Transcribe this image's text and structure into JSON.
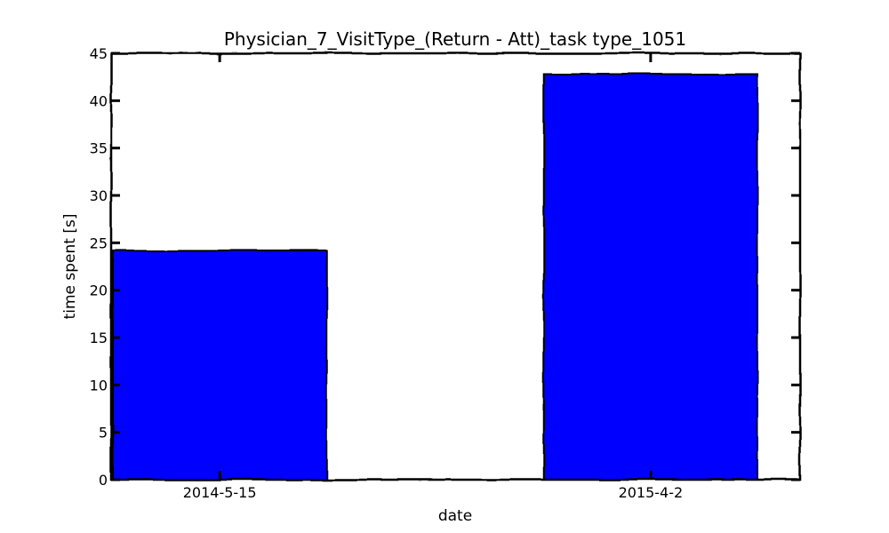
{
  "chart_data": {
    "type": "bar",
    "title": "Physician_7_VisitType_(Return - Att)_task type_1051",
    "xlabel": "date",
    "ylabel": "time spent [s]",
    "categories": [
      "2014-5-15",
      "2015-4-2"
    ],
    "values": [
      24.2,
      42.8
    ],
    "ylim": [
      0,
      45
    ],
    "yticks": [
      0,
      5,
      10,
      15,
      20,
      25,
      30,
      35,
      40,
      45
    ],
    "grid": false,
    "bar_color": "#0000ff",
    "edge_color": "#000000"
  }
}
